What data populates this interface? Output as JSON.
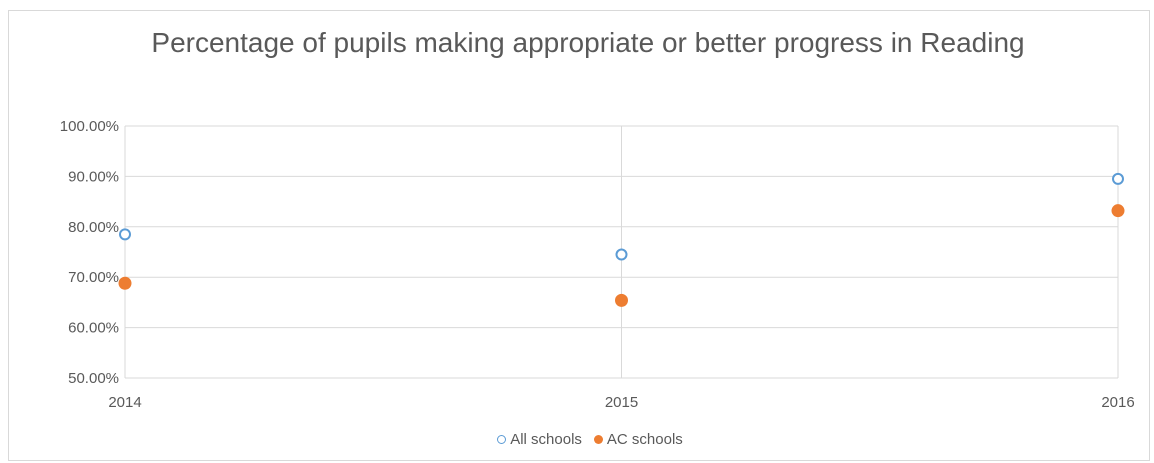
{
  "chart_data": {
    "type": "scatter",
    "title": "Percentage of pupils making appropriate or better progress in Reading",
    "xlabel": "",
    "ylabel": "",
    "x": [
      2014,
      2015,
      2016
    ],
    "x_tick_labels": [
      "2014",
      "2015",
      "2016"
    ],
    "xlim": [
      2014,
      2016
    ],
    "ylim": [
      0.5,
      1.0
    ],
    "y_tick_values": [
      0.5,
      0.6,
      0.7,
      0.8,
      0.9,
      1.0
    ],
    "y_tick_labels": [
      "50.00%",
      "60.00%",
      "70.00%",
      "80.00%",
      "90.00%",
      "100.00%"
    ],
    "grid": true,
    "legend_position": "bottom",
    "series": [
      {
        "name": "All schools",
        "values": [
          0.785,
          0.745,
          0.895
        ],
        "color": "#5b9bd5",
        "marker": "hollow-circle"
      },
      {
        "name": "AC schools",
        "values": [
          0.688,
          0.654,
          0.832
        ],
        "color": "#ed7d31",
        "marker": "filled-circle"
      }
    ]
  }
}
